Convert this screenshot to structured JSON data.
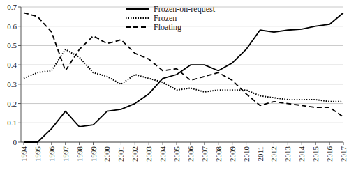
{
  "chart_data": {
    "type": "line",
    "categories": [
      "1994",
      "1995",
      "1996",
      "1997",
      "1998",
      "1999",
      "2000",
      "2001",
      "2002",
      "2003",
      "2004",
      "2005",
      "2006",
      "2007",
      "2008",
      "2009",
      "2010",
      "2011",
      "2012",
      "2013",
      "2014",
      "2015",
      "2016",
      "2017"
    ],
    "series": [
      {
        "name": "Frozen-on-request",
        "color": "#000000",
        "line_style": "solid",
        "values": [
          0,
          0,
          0.07,
          0.16,
          0.08,
          0.09,
          0.16,
          0.17,
          0.2,
          0.25,
          0.33,
          0.35,
          0.4,
          0.4,
          0.37,
          0.41,
          0.48,
          0.58,
          0.57,
          0.58,
          0.585,
          0.6,
          0.61,
          0.67
        ]
      },
      {
        "name": "Frozen",
        "color": "#000000",
        "line_style": "dotted",
        "values": [
          0.33,
          0.36,
          0.37,
          0.48,
          0.44,
          0.36,
          0.34,
          0.3,
          0.35,
          0.33,
          0.31,
          0.27,
          0.28,
          0.26,
          0.27,
          0.27,
          0.27,
          0.24,
          0.23,
          0.22,
          0.22,
          0.22,
          0.21,
          0.21
        ]
      },
      {
        "name": "Floating",
        "color": "#000000",
        "line_style": "dashed",
        "values": [
          0.67,
          0.65,
          0.57,
          0.37,
          0.48,
          0.55,
          0.51,
          0.53,
          0.46,
          0.43,
          0.37,
          0.38,
          0.32,
          0.34,
          0.36,
          0.32,
          0.25,
          0.19,
          0.21,
          0.2,
          0.19,
          0.18,
          0.18,
          0.13
        ]
      }
    ],
    "ylim": [
      0,
      0.7
    ],
    "yticks": [
      0,
      0.1,
      0.2,
      0.3,
      0.4,
      0.5,
      0.6,
      0.7
    ],
    "grid": true,
    "legend": "top"
  }
}
